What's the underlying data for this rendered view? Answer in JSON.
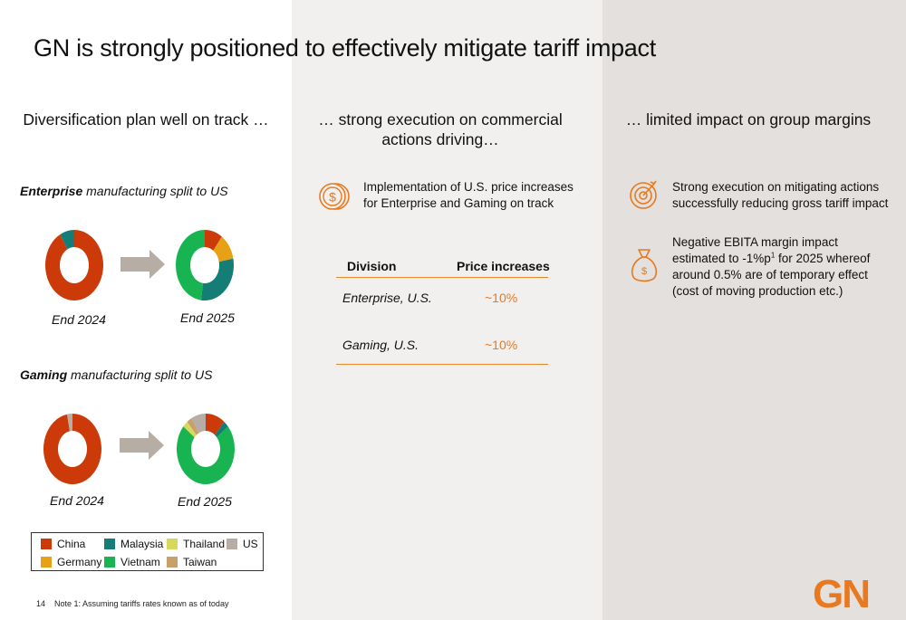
{
  "title": "GN is strongly positioned to effectively mitigate tariff impact",
  "columns": {
    "left_heading": "Diversification plan well on track …",
    "middle_heading": "… strong execution on commercial actions driving…",
    "right_heading": "… limited impact on group margins"
  },
  "enterprise": {
    "label_bold": "Enterprise",
    "label_rest": " manufacturing split to US",
    "year_start": "End 2024",
    "year_end": "End 2025"
  },
  "gaming": {
    "label_bold": "Gaming",
    "label_rest": " manufacturing split to US",
    "year_start": "End 2024",
    "year_end": "End 2025"
  },
  "chart_data": [
    {
      "type": "pie",
      "variant": "donut",
      "title": "Enterprise End 2024",
      "categories": [
        "China",
        "Malaysia"
      ],
      "values": [
        92,
        8
      ]
    },
    {
      "type": "pie",
      "variant": "donut",
      "title": "Enterprise End 2025",
      "categories": [
        "China",
        "Germany",
        "Malaysia",
        "Vietnam"
      ],
      "values": [
        10,
        12,
        30,
        48
      ]
    },
    {
      "type": "pie",
      "variant": "donut",
      "title": "Gaming End 2024",
      "categories": [
        "China",
        "US"
      ],
      "values": [
        97,
        3
      ]
    },
    {
      "type": "pie",
      "variant": "donut",
      "title": "Gaming End 2025",
      "categories": [
        "China",
        "Malaysia",
        "Vietnam",
        "Thailand",
        "Taiwan",
        "US"
      ],
      "values": [
        11,
        3,
        72,
        3,
        3,
        8
      ]
    }
  ],
  "colors": {
    "China": "#cc3a0a",
    "Malaysia": "#137d76",
    "Thailand": "#d6d95c",
    "US": "#b5ada6",
    "Germany": "#e8a014",
    "Vietnam": "#18b452",
    "Taiwan": "#c9a06c",
    "accent": "#e8791e",
    "arrow": "#b6ada5"
  },
  "legend": [
    {
      "name": "China",
      "color": "#cc3a0a"
    },
    {
      "name": "Malaysia",
      "color": "#137d76"
    },
    {
      "name": "Thailand",
      "color": "#d6d95c"
    },
    {
      "name": "US",
      "color": "#b5ada6"
    },
    {
      "name": "Germany",
      "color": "#e8a014"
    },
    {
      "name": "Vietnam",
      "color": "#18b452"
    },
    {
      "name": "Taiwan",
      "color": "#c9a06c"
    }
  ],
  "middle": {
    "icon": "coin-dollar-icon",
    "bullet": "Implementation of U.S. price increases for Enterprise and Gaming on track",
    "table": {
      "headers": [
        "Division",
        "Price increases"
      ],
      "rows": [
        [
          "Enterprise, U.S.",
          "~10%"
        ],
        [
          "Gaming, U.S.",
          "~10%"
        ]
      ]
    }
  },
  "right": {
    "bullet1_icon": "target-icon",
    "bullet1": "Strong execution on mitigating actions successfully reducing gross tariff impact",
    "bullet2_icon": "money-bag-icon",
    "bullet2_part1": "Negative EBITA margin impact estimated to -1%p",
    "bullet2_sup": "1",
    "bullet2_part2": " for 2025 whereof around 0.5% are of temporary effect (cost of moving production etc.)"
  },
  "footer": {
    "page_number": "14",
    "note": "Note 1: Assuming tariffs rates known as of today",
    "logo": "GN"
  }
}
